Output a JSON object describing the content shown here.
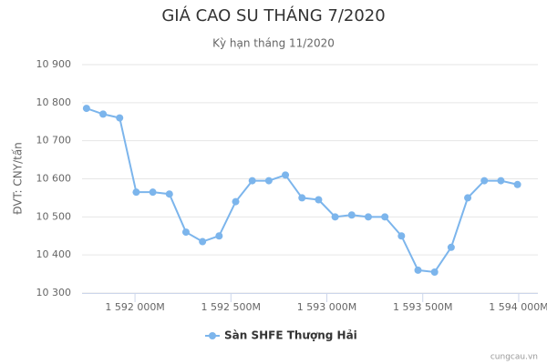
{
  "chart_data": {
    "type": "line",
    "title": "GIÁ CAO SU THÁNG 7/2020",
    "subtitle": "Kỳ hạn tháng 11/2020",
    "y_axis_label": "ĐVT: CNY/tấn",
    "credit": "cungcau.vn",
    "x": [
      1591747200000,
      1591833600000,
      1591920000000,
      1592006400000,
      1592092800000,
      1592179200000,
      1592265600000,
      1592352000000,
      1592438400000,
      1592524800000,
      1592611200000,
      1592697600000,
      1592784000000,
      1592870400000,
      1592956800000,
      1593043200000,
      1593129600000,
      1593216000000,
      1593302400000,
      1593388800000,
      1593475200000,
      1593561600000,
      1593648000000,
      1593734400000,
      1593820800000,
      1593907200000,
      1593993600000
    ],
    "series": [
      {
        "name": "Sàn SHFE Thượng Hải",
        "color": "#7cb5ec",
        "values": [
          10785,
          10770,
          10760,
          10565,
          10565,
          10560,
          10460,
          10435,
          10450,
          10540,
          10595,
          10595,
          10610,
          10550,
          10545,
          10500,
          10505,
          10500,
          10500,
          10450,
          10360,
          10355,
          10420,
          10550,
          10595,
          10595,
          10585
        ]
      }
    ],
    "xlim": [
      1591724000000,
      1594100000000
    ],
    "xticks": [
      {
        "value": 1592000000000,
        "label": "1 592 000M"
      },
      {
        "value": 1592500000000,
        "label": "1 592 500M"
      },
      {
        "value": 1593000000000,
        "label": "1 593 000M"
      },
      {
        "value": 1593500000000,
        "label": "1 593 500M"
      },
      {
        "value": 1594000000000,
        "label": "1 594 000M"
      }
    ],
    "ylim": [
      10300,
      10900
    ],
    "yticks": [
      {
        "value": 10300,
        "label": "10 300"
      },
      {
        "value": 10400,
        "label": "10 400"
      },
      {
        "value": 10500,
        "label": "10 500"
      },
      {
        "value": 10600,
        "label": "10 600"
      },
      {
        "value": 10700,
        "label": "10 700"
      },
      {
        "value": 10800,
        "label": "10 800"
      },
      {
        "value": 10900,
        "label": "10 900"
      }
    ],
    "grid": true
  }
}
